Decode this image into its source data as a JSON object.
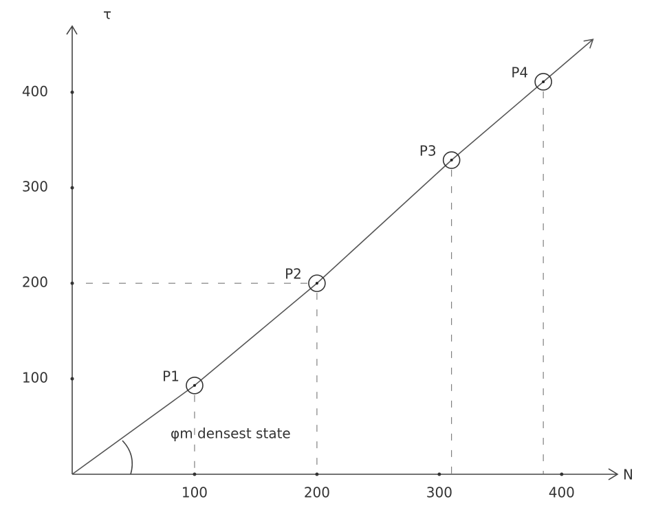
{
  "chart_data": {
    "type": "line",
    "y_label": "τ",
    "x_label": "N",
    "x": [
      0,
      100,
      200,
      310,
      385
    ],
    "series": [
      {
        "values": [
          0,
          93,
          200,
          329,
          411
        ],
        "color": "#555555"
      }
    ],
    "point_labels": [
      null,
      "P1",
      "P2",
      "P3",
      "P4"
    ],
    "xlim": [
      0,
      440
    ],
    "ylim": [
      0,
      470
    ],
    "xticks": [
      100,
      200,
      300,
      400
    ],
    "yticks": [
      100,
      200,
      300,
      400
    ],
    "annotation": "φm densest state"
  }
}
